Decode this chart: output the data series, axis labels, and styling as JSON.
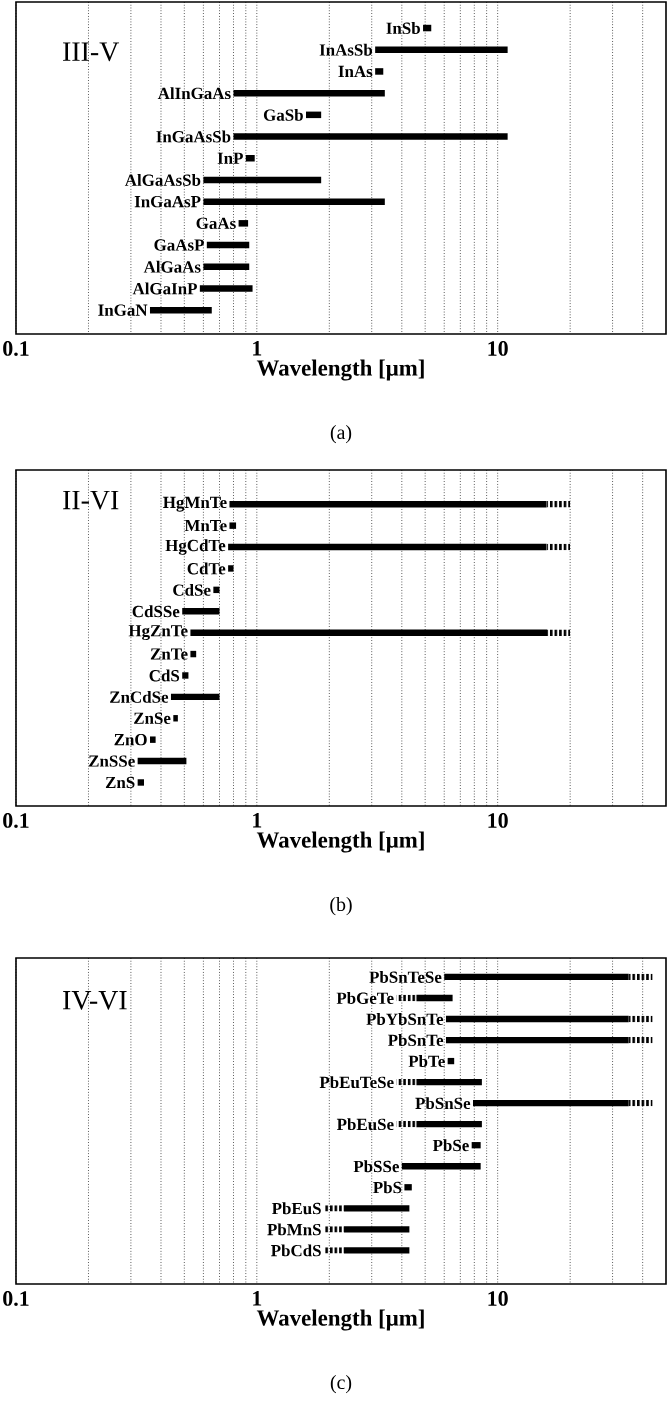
{
  "chart_data": [
    {
      "type": "bar",
      "orientation": "horizontal",
      "log": "x",
      "grid": "x",
      "title": "III-V",
      "xlabel": "Wavelength [μm]",
      "annotations": [
        "(a)"
      ],
      "xlim": [
        0.1,
        50
      ],
      "xticks": [
        0.1,
        1,
        10
      ],
      "categories": [
        "InSb",
        "InAsSb",
        "InAs",
        "AlInGaAs",
        "GaSb",
        "InGaAsSb",
        "InP",
        "AlGaAsSb",
        "InGaAsP",
        "GaAs",
        "GaAsP",
        "AlGaAs",
        "AlGaInP",
        "InGaN"
      ],
      "series": [
        {
          "color": "#000000",
          "base": [
            4.9,
            3.1,
            3.1,
            0.8,
            1.6,
            0.8,
            0.9,
            0.6,
            0.6,
            0.84,
            0.62,
            0.6,
            0.58,
            0.36
          ],
          "values": [
            0.4,
            7.9,
            0.25,
            2.6,
            0.25,
            10.2,
            0.08,
            1.25,
            2.8,
            0.08,
            0.31,
            0.33,
            0.38,
            0.29
          ]
        }
      ]
    },
    {
      "type": "bar",
      "orientation": "horizontal",
      "log": "x",
      "grid": "x",
      "title": "II-VI",
      "xlabel": "Wavelength [μm]",
      "annotations": [
        "(b)"
      ],
      "xlim": [
        0.1,
        50
      ],
      "xticks": [
        0.1,
        1,
        10
      ],
      "categories": [
        "HgMnTe",
        "MnTe",
        "HgCdTe",
        "CdTe",
        "CdSe",
        "CdSSe",
        "HgZnTe",
        "ZnTe",
        "CdS",
        "ZnCdSe",
        "ZnSe",
        "ZnO",
        "ZnSSe",
        "ZnS"
      ],
      "series": [
        {
          "color": "#000000",
          "base": [
            0.77,
            0.77,
            0.76,
            0.76,
            0.66,
            0.49,
            0.53,
            0.53,
            0.49,
            0.44,
            0.45,
            0.36,
            0.32,
            0.32
          ],
          "values": [
            15.2,
            0.05,
            15.2,
            0.04,
            0.04,
            0.21,
            15.5,
            0.03,
            0.03,
            0.26,
            0.02,
            0.02,
            0.19,
            0.02
          ]
        },
        {
          "color": "#000000",
          "line_style": "dotted",
          "base": [
            16,
            null,
            16,
            null,
            null,
            null,
            16,
            null,
            null,
            null,
            null,
            null,
            null,
            null
          ],
          "values": [
            4,
            null,
            4,
            null,
            null,
            null,
            4,
            null,
            null,
            null,
            null,
            null,
            null,
            null
          ]
        }
      ]
    },
    {
      "type": "bar",
      "orientation": "horizontal",
      "log": "x",
      "grid": "x",
      "title": "IV-VI",
      "xlabel": "Wavelength [μm]",
      "annotations": [
        "(c)"
      ],
      "xlim": [
        0.1,
        50
      ],
      "xticks": [
        0.1,
        1,
        10
      ],
      "categories": [
        "PbSnTeSe",
        "PbGeTe",
        "PbYbSnTe",
        "PbSnTe",
        "PbTe",
        "PbEuTeSe",
        "PbSnSe",
        "PbEuSe",
        "PbSe",
        "PbSSe",
        "PbS",
        "PbEuS",
        "PbMnS",
        "PbCdS"
      ],
      "series": [
        {
          "color": "#000000",
          "base": [
            6,
            4.6,
            6.1,
            6.1,
            6.2,
            4.6,
            7.9,
            4.6,
            7.8,
            4,
            4.1,
            2.3,
            2.3,
            2.3
          ],
          "values": [
            29,
            1.9,
            28.9,
            28.9,
            0.4,
            4,
            27.1,
            4,
            0.7,
            4.5,
            0.3,
            2,
            2,
            2
          ]
        },
        {
          "color": "#000000",
          "line_style": "dotted",
          "base": [
            35,
            3.8,
            35,
            35,
            null,
            3.8,
            35,
            3.8,
            null,
            null,
            null,
            1.9,
            1.9,
            1.9
          ],
          "values": [
            9,
            0.8,
            9,
            9,
            null,
            0.8,
            9,
            0.8,
            null,
            null,
            null,
            0.4,
            0.4,
            0.4
          ]
        }
      ]
    }
  ]
}
